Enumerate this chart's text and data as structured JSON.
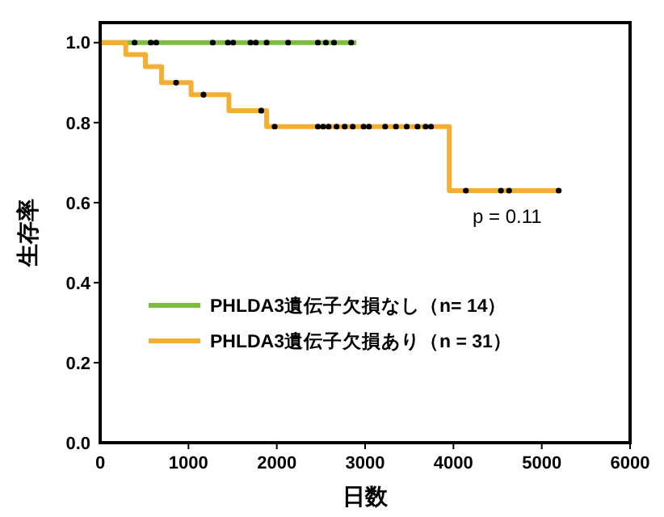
{
  "chart_data": {
    "type": "step",
    "xlabel": "日数",
    "ylabel": "生存率",
    "xlim": [
      0,
      6000
    ],
    "xticks": [
      0,
      1000,
      2000,
      3000,
      4000,
      5000,
      6000
    ],
    "ylim": [
      0,
      1.05
    ],
    "yticks": [
      {
        "value": 0,
        "label": "0.0"
      },
      0.2,
      0.4,
      0.6,
      0.8,
      {
        "value": 1,
        "label": "1.0"
      }
    ],
    "series": [
      {
        "name": "PHLDA3遺伝子欠損なし（n= 14）",
        "color": "#7dbb42",
        "x": [
          0,
          2900
        ],
        "values": [
          1,
          1
        ]
      },
      {
        "name": "PHLDA3遺伝子欠損あり（n = 31）",
        "color": "#f5ae34",
        "x": [
          0,
          290,
          512,
          695,
          1030,
          1458,
          1885,
          3953,
          5200
        ],
        "values": [
          1,
          0.97,
          0.94,
          0.9,
          0.87,
          0.83,
          0.79,
          0.63,
          0.63
        ]
      },
      {
        "type": "scatter",
        "marker": "circle",
        "color": "#000000",
        "x": [
          390,
          573,
          635,
          1275,
          1446,
          1506,
          1702,
          1763,
          1885,
          2128,
          2465,
          2556,
          2648,
          2842
        ],
        "values": [
          1,
          1,
          1,
          1,
          1,
          1,
          1,
          1,
          1,
          1,
          1,
          1,
          1,
          1
        ]
      },
      {
        "type": "scatter",
        "marker": "circle",
        "color": "#000000",
        "x": [
          860,
          1170,
          1824,
          1976,
          2465,
          2525,
          2586,
          2677,
          2769,
          2860,
          2983,
          3044,
          3227,
          3349,
          3471,
          3593,
          3685,
          3746,
          4141,
          4538,
          4630,
          5192
        ],
        "values": [
          0.9,
          0.87,
          0.83,
          0.79,
          0.79,
          0.79,
          0.79,
          0.79,
          0.79,
          0.79,
          0.79,
          0.79,
          0.79,
          0.79,
          0.79,
          0.79,
          0.79,
          0.79,
          0.63,
          0.63,
          0.63,
          0.63
        ]
      }
    ],
    "legend": "bottom left",
    "annotations": [
      "p = 0.11"
    ]
  }
}
